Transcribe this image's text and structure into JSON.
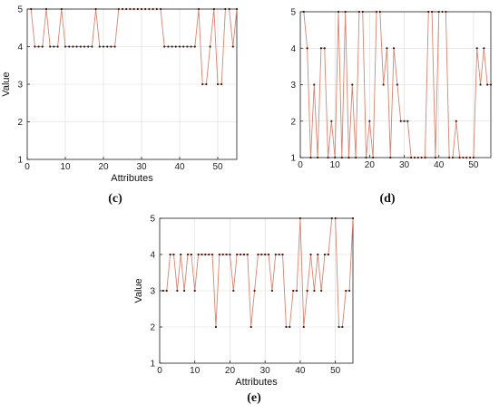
{
  "colors": {
    "line": "#d9846f",
    "marker": "#3a1a12",
    "axis": "#222222",
    "grid": "#d9d9d9"
  },
  "chart_data": [
    {
      "panel_label": "(c)",
      "type": "line",
      "xlabel": "Attributes",
      "ylabel": "Value",
      "xlim": [
        0,
        55
      ],
      "ylim": [
        1,
        5
      ],
      "xticks": [
        "0",
        "10",
        "20",
        "30",
        "40",
        "50"
      ],
      "yticks": [
        "1",
        "2",
        "3",
        "4",
        "5"
      ],
      "grid": true,
      "x": [
        1,
        2,
        3,
        4,
        5,
        6,
        7,
        8,
        9,
        10,
        11,
        12,
        13,
        14,
        15,
        16,
        17,
        18,
        19,
        20,
        21,
        22,
        23,
        24,
        25,
        26,
        27,
        28,
        29,
        30,
        31,
        32,
        33,
        34,
        35,
        36,
        37,
        38,
        39,
        40,
        41,
        42,
        43,
        44,
        45,
        46,
        47,
        48,
        49,
        50,
        51,
        52,
        53,
        54,
        55
      ],
      "values": [
        5,
        4,
        4,
        4,
        5,
        4,
        4,
        4,
        5,
        4,
        4,
        4,
        4,
        4,
        4,
        4,
        4,
        5,
        4,
        4,
        4,
        4,
        4,
        5,
        5,
        5,
        5,
        5,
        5,
        5,
        5,
        5,
        5,
        5,
        5,
        4,
        4,
        4,
        4,
        4,
        4,
        4,
        4,
        4,
        5,
        3,
        3,
        4,
        5,
        3,
        3,
        5,
        5,
        4,
        5
      ]
    },
    {
      "panel_label": "(d)",
      "type": "line",
      "xlabel": "",
      "ylabel": "",
      "xlim": [
        0,
        55
      ],
      "ylim": [
        1,
        5
      ],
      "xticks": [
        "0",
        "10",
        "20",
        "30",
        "40",
        "50"
      ],
      "yticks": [
        "1",
        "2",
        "3",
        "4",
        "5"
      ],
      "grid": true,
      "x": [
        1,
        2,
        3,
        4,
        5,
        6,
        7,
        8,
        9,
        10,
        11,
        12,
        13,
        14,
        15,
        16,
        17,
        18,
        19,
        20,
        21,
        22,
        23,
        24,
        25,
        26,
        27,
        28,
        29,
        30,
        31,
        32,
        33,
        34,
        35,
        36,
        37,
        38,
        39,
        40,
        41,
        42,
        43,
        44,
        45,
        46,
        47,
        48,
        49,
        50,
        51,
        52,
        53,
        54,
        55
      ],
      "values": [
        5,
        4,
        1,
        3,
        1,
        4,
        4,
        1,
        2,
        1,
        5,
        1,
        5,
        1,
        3,
        1,
        5,
        5,
        1,
        2,
        1,
        5,
        5,
        3,
        4,
        1,
        4,
        3,
        2,
        2,
        2,
        1,
        1,
        1,
        1,
        1,
        5,
        5,
        1,
        5,
        5,
        5,
        1,
        1,
        2,
        1,
        1,
        1,
        1,
        1,
        4,
        3,
        4,
        3,
        3
      ]
    },
    {
      "panel_label": "(e)",
      "type": "line",
      "xlabel": "Attributes",
      "ylabel": "Value",
      "xlim": [
        0,
        55
      ],
      "ylim": [
        1,
        5
      ],
      "xticks": [
        "0",
        "10",
        "20",
        "30",
        "40",
        "50"
      ],
      "yticks": [
        "1",
        "2",
        "3",
        "4",
        "5"
      ],
      "grid": true,
      "x": [
        1,
        2,
        3,
        4,
        5,
        6,
        7,
        8,
        9,
        10,
        11,
        12,
        13,
        14,
        15,
        16,
        17,
        18,
        19,
        20,
        21,
        22,
        23,
        24,
        25,
        26,
        27,
        28,
        29,
        30,
        31,
        32,
        33,
        34,
        35,
        36,
        37,
        38,
        39,
        40,
        41,
        42,
        43,
        44,
        45,
        46,
        47,
        48,
        49,
        50,
        51,
        52,
        53,
        54,
        55
      ],
      "values": [
        3,
        3,
        4,
        4,
        3,
        4,
        3,
        4,
        4,
        3,
        4,
        4,
        4,
        4,
        4,
        2,
        4,
        4,
        4,
        4,
        3,
        4,
        4,
        4,
        4,
        2,
        3,
        4,
        4,
        4,
        4,
        3,
        4,
        4,
        4,
        2,
        2,
        3,
        3,
        5,
        2,
        3,
        4,
        3,
        4,
        3,
        4,
        4,
        5,
        5,
        2,
        2,
        3,
        3,
        5
      ]
    }
  ]
}
